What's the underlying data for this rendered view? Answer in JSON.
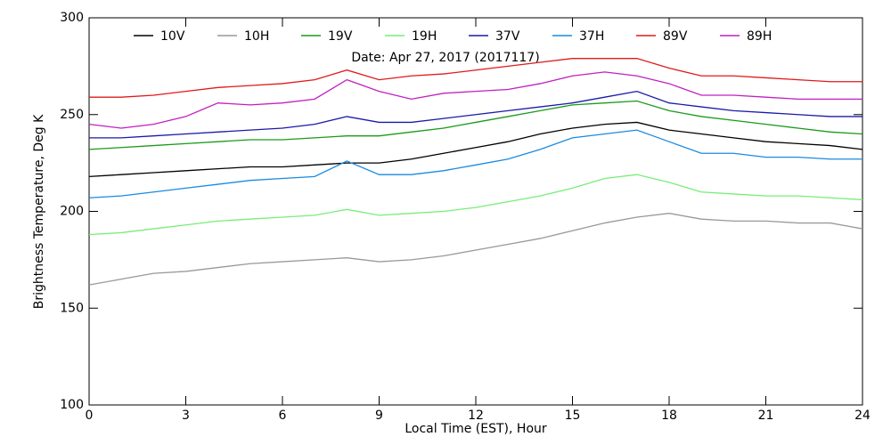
{
  "chart_data": {
    "type": "line",
    "annotation": "Date: Apr 27, 2017 (2017117)",
    "x_label": "Local Time (EST), Hour",
    "y_label": "Brightness Temperature, Deg K",
    "x": [
      0,
      1,
      2,
      3,
      4,
      5,
      6,
      7,
      8,
      9,
      10,
      11,
      12,
      13,
      14,
      15,
      16,
      17,
      18,
      19,
      20,
      21,
      22,
      23,
      24
    ],
    "series": [
      {
        "name": "10V",
        "color": "#000000",
        "values": [
          218,
          219,
          220,
          221,
          222,
          223,
          223,
          224,
          225,
          225,
          227,
          230,
          233,
          236,
          240,
          243,
          245,
          246,
          242,
          240,
          238,
          236,
          235,
          234,
          232
        ]
      },
      {
        "name": "10H",
        "color": "#999999",
        "values": [
          162,
          165,
          168,
          169,
          171,
          173,
          174,
          175,
          176,
          174,
          175,
          177,
          180,
          183,
          186,
          190,
          194,
          197,
          199,
          196,
          195,
          195,
          194,
          194,
          191
        ]
      },
      {
        "name": "19V",
        "color": "#1a9a1a",
        "values": [
          232,
          233,
          234,
          235,
          236,
          237,
          237,
          238,
          239,
          239,
          241,
          243,
          246,
          249,
          252,
          255,
          256,
          257,
          252,
          249,
          247,
          245,
          243,
          241,
          240
        ]
      },
      {
        "name": "19H",
        "color": "#77ee77",
        "values": [
          188,
          189,
          191,
          193,
          195,
          196,
          197,
          198,
          201,
          198,
          199,
          200,
          202,
          205,
          208,
          212,
          217,
          219,
          215,
          210,
          209,
          208,
          208,
          207,
          206
        ]
      },
      {
        "name": "37V",
        "color": "#1a1aaa",
        "values": [
          238,
          238,
          239,
          240,
          241,
          242,
          243,
          245,
          249,
          246,
          246,
          248,
          250,
          252,
          254,
          256,
          259,
          262,
          256,
          254,
          252,
          251,
          250,
          249,
          249
        ]
      },
      {
        "name": "37H",
        "color": "#1a8ae0",
        "values": [
          207,
          208,
          210,
          212,
          214,
          216,
          217,
          218,
          226,
          219,
          219,
          221,
          224,
          227,
          232,
          238,
          240,
          242,
          236,
          230,
          230,
          228,
          228,
          227,
          227
        ]
      },
      {
        "name": "89V",
        "color": "#e01a1a",
        "values": [
          259,
          259,
          260,
          262,
          264,
          265,
          266,
          268,
          273,
          268,
          270,
          271,
          273,
          275,
          277,
          279,
          279,
          279,
          274,
          270,
          270,
          269,
          268,
          267,
          267
        ]
      },
      {
        "name": "89H",
        "color": "#c020c0",
        "values": [
          245,
          243,
          245,
          249,
          256,
          255,
          256,
          258,
          268,
          262,
          258,
          261,
          262,
          263,
          266,
          270,
          272,
          270,
          266,
          260,
          260,
          259,
          258,
          258,
          258
        ]
      }
    ],
    "xlim": [
      0,
      24
    ],
    "xticks": [
      0,
      3,
      6,
      9,
      12,
      15,
      18,
      21,
      24
    ],
    "ylim": [
      100,
      300
    ],
    "yticks": [
      100,
      150,
      200,
      250,
      300
    ]
  }
}
